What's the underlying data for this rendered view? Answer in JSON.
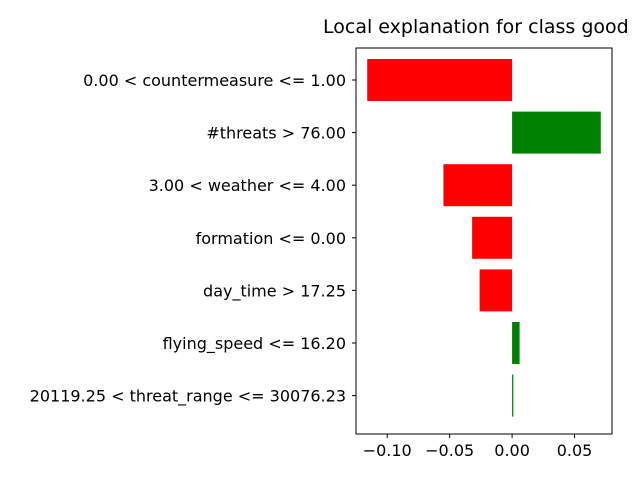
{
  "chart_data": {
    "type": "bar",
    "orientation": "horizontal",
    "title": "Local explanation for class good",
    "xlabel": "",
    "ylabel": "",
    "xlim": [
      -0.125,
      0.08
    ],
    "xticks": [
      -0.1,
      -0.05,
      0.0,
      0.05
    ],
    "xtick_labels": [
      "−0.10",
      "−0.05",
      "0.00",
      "0.05"
    ],
    "categories": [
      "0.00 < countermeasure <= 1.00",
      "#threats > 76.00",
      "3.00 < weather <= 4.00",
      "formation <= 0.00",
      "day_time > 17.25",
      "flying_speed <= 16.20",
      "20119.25 < threat_range <= 30076.23"
    ],
    "values": [
      -0.116,
      0.071,
      -0.055,
      -0.032,
      -0.026,
      0.006,
      0.001
    ],
    "colors": {
      "positive": "#008000",
      "negative": "#ff0000"
    },
    "grid": false,
    "legend": "none"
  }
}
